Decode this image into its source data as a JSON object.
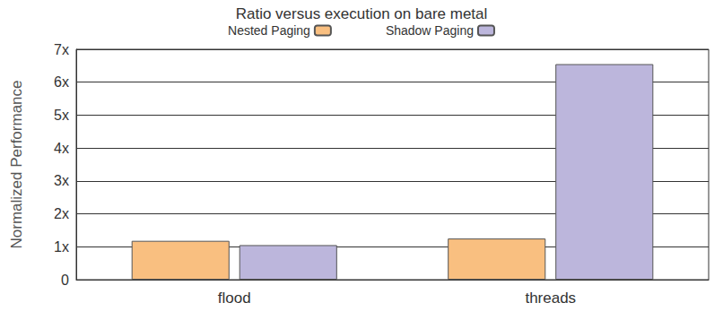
{
  "chart_data": {
    "type": "bar",
    "title": "Ratio versus execution on bare metal",
    "y_label": "Normalized Performance",
    "categories": [
      "flood",
      "threads"
    ],
    "series": [
      {
        "name": "Nested Paging",
        "color": "#f9bf80",
        "values": [
          1.18,
          1.25
        ]
      },
      {
        "name": "Shadow Paging",
        "color": "#bcb6dc",
        "values": [
          1.05,
          6.55
        ]
      }
    ],
    "ylim": [
      0,
      7
    ],
    "yticks": [
      0,
      {
        "value": 1,
        "label": "1x"
      },
      {
        "value": 2,
        "label": "2x"
      },
      {
        "value": 3,
        "label": "3x"
      },
      {
        "value": 4,
        "label": "4x"
      },
      {
        "value": 5,
        "label": "5x"
      },
      {
        "value": 6,
        "label": "6x"
      },
      {
        "value": 7,
        "label": "7x"
      }
    ],
    "grid": true,
    "legend": "top"
  }
}
